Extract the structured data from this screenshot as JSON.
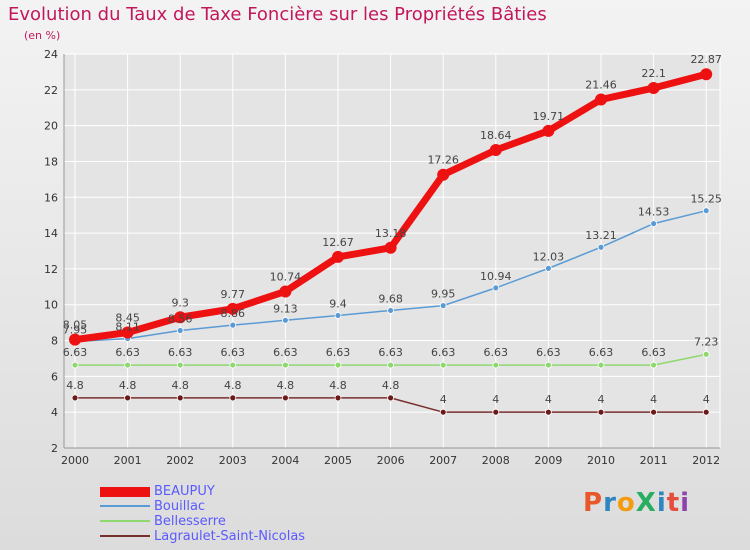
{
  "page": {
    "title": "Evolution du Taux de Taxe Foncière sur les Propriétés Bâties",
    "subtitle": "(en %)",
    "logo_text": "ProXiti"
  },
  "colors": {
    "title": "#c2185b",
    "legend_text": "#5a5aff",
    "grid": "#ffffff",
    "logo": [
      "#e8562a",
      "#2e86c1",
      "#f39c12",
      "#27ae60",
      "#2e86c1",
      "#e74c3c",
      "#8e44ad"
    ]
  },
  "chart_data": {
    "type": "line",
    "categories": [
      "2000",
      "2001",
      "2002",
      "2003",
      "2004",
      "2005",
      "2006",
      "2007",
      "2008",
      "2009",
      "2010",
      "2011",
      "2012"
    ],
    "ylim": [
      2,
      24
    ],
    "yticks": [
      "2",
      "4",
      "6",
      "8",
      "10",
      "12",
      "14",
      "16",
      "18",
      "20",
      "22",
      "24"
    ],
    "grid": true,
    "legend_position": "bottom-left",
    "series": [
      {
        "name": "BEAUPUY",
        "color": "#ee1111",
        "marker_fill": "#ee1111",
        "values": [
          8.05,
          8.45,
          9.3,
          9.77,
          10.74,
          12.67,
          13.18,
          17.26,
          18.64,
          19.71,
          21.46,
          22.1,
          22.87
        ],
        "labels": [
          "8.05",
          "8.45",
          "9.3",
          "9.77",
          "10.74",
          "12.67",
          "13.18",
          "17.26",
          "18.64",
          "19.71",
          "21.46",
          "22.1",
          "22.87"
        ]
      },
      {
        "name": "Bouillac",
        "color": "#5b9bd5",
        "marker_fill": "#5b9bd5",
        "values": [
          7.95,
          8.11,
          8.56,
          8.86,
          9.13,
          9.4,
          9.68,
          9.95,
          10.94,
          12.03,
          13.21,
          14.53,
          15.25
        ],
        "labels": [
          "7.95",
          "8.11",
          "8.56",
          "8.86",
          "9.13",
          "9.4",
          "9.68",
          "9.95",
          "10.94",
          "12.03",
          "13.21",
          "14.53",
          "15.25"
        ]
      },
      {
        "name": "Bellesserre",
        "color": "#8ed86f",
        "marker_fill": "#8ed86f",
        "values": [
          6.63,
          6.63,
          6.63,
          6.63,
          6.63,
          6.63,
          6.63,
          6.63,
          6.63,
          6.63,
          6.63,
          6.63,
          7.23
        ],
        "labels": [
          "6.63",
          "6.63",
          "6.63",
          "6.63",
          "6.63",
          "6.63",
          "6.63",
          "6.63",
          "6.63",
          "6.63",
          "6.63",
          "6.63",
          "7.23"
        ]
      },
      {
        "name": "Lagraulet-Saint-Nicolas",
        "color": "#7a2f2f",
        "marker_fill": "#6b1a1a",
        "values": [
          4.8,
          4.8,
          4.8,
          4.8,
          4.8,
          4.8,
          4.8,
          4,
          4,
          4,
          4,
          4,
          4
        ],
        "labels": [
          "4.8",
          "4.8",
          "4.8",
          "4.8",
          "4.8",
          "4.8",
          "4.8",
          "4",
          "4",
          "4",
          "4",
          "4",
          "4"
        ]
      }
    ]
  }
}
